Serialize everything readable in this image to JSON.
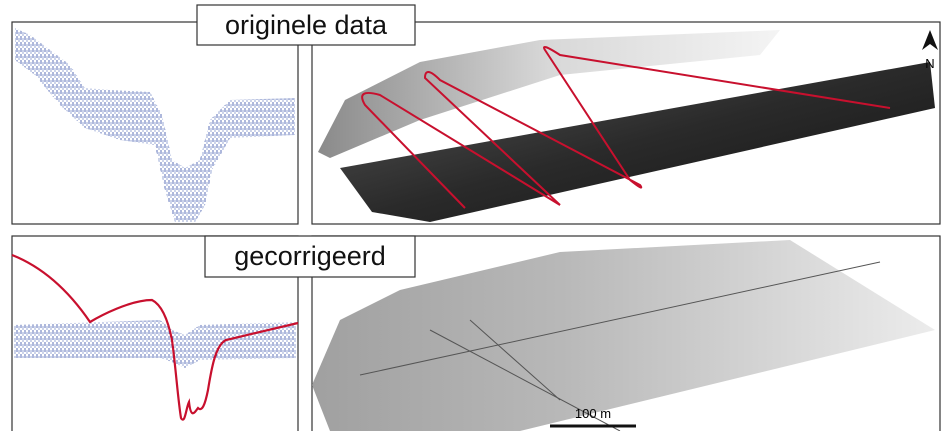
{
  "top_panel": {
    "label": "originele data"
  },
  "bottom_panel": {
    "label": "gecorrigeerd"
  },
  "map": {
    "north": "N",
    "scale_bar": "100 m"
  }
}
